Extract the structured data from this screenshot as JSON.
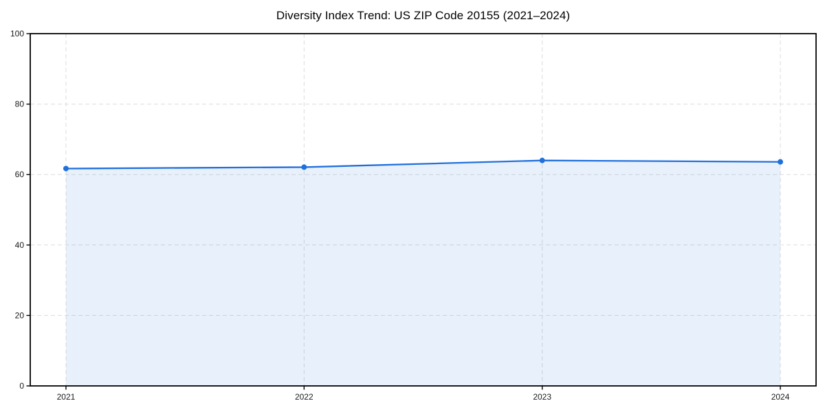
{
  "chart_data": {
    "type": "area",
    "title": "Diversity Index Trend: US ZIP Code 20155 (2021–2024)",
    "x": [
      "2021",
      "2022",
      "2023",
      "2024"
    ],
    "series": [
      {
        "name": "Diversity Index",
        "values": [
          61.7,
          62.1,
          64.0,
          63.6
        ]
      }
    ],
    "xlabel": "",
    "ylabel": "",
    "ylim": [
      0,
      100
    ],
    "yticks": [
      0,
      20,
      40,
      60,
      80,
      100
    ],
    "grid": "dashed, horizontal and vertical, axisbelow",
    "legend_position": "none",
    "line_color": "#2070dc",
    "marker": "circle",
    "marker_color": "#2070dc",
    "fill_color": "rgba(32,112,220,0.10)",
    "grid_color": "#dcdcdc",
    "spine_color": "#000000",
    "tick_label_color": "#1a1a1a",
    "background_color": "#ffffff"
  }
}
